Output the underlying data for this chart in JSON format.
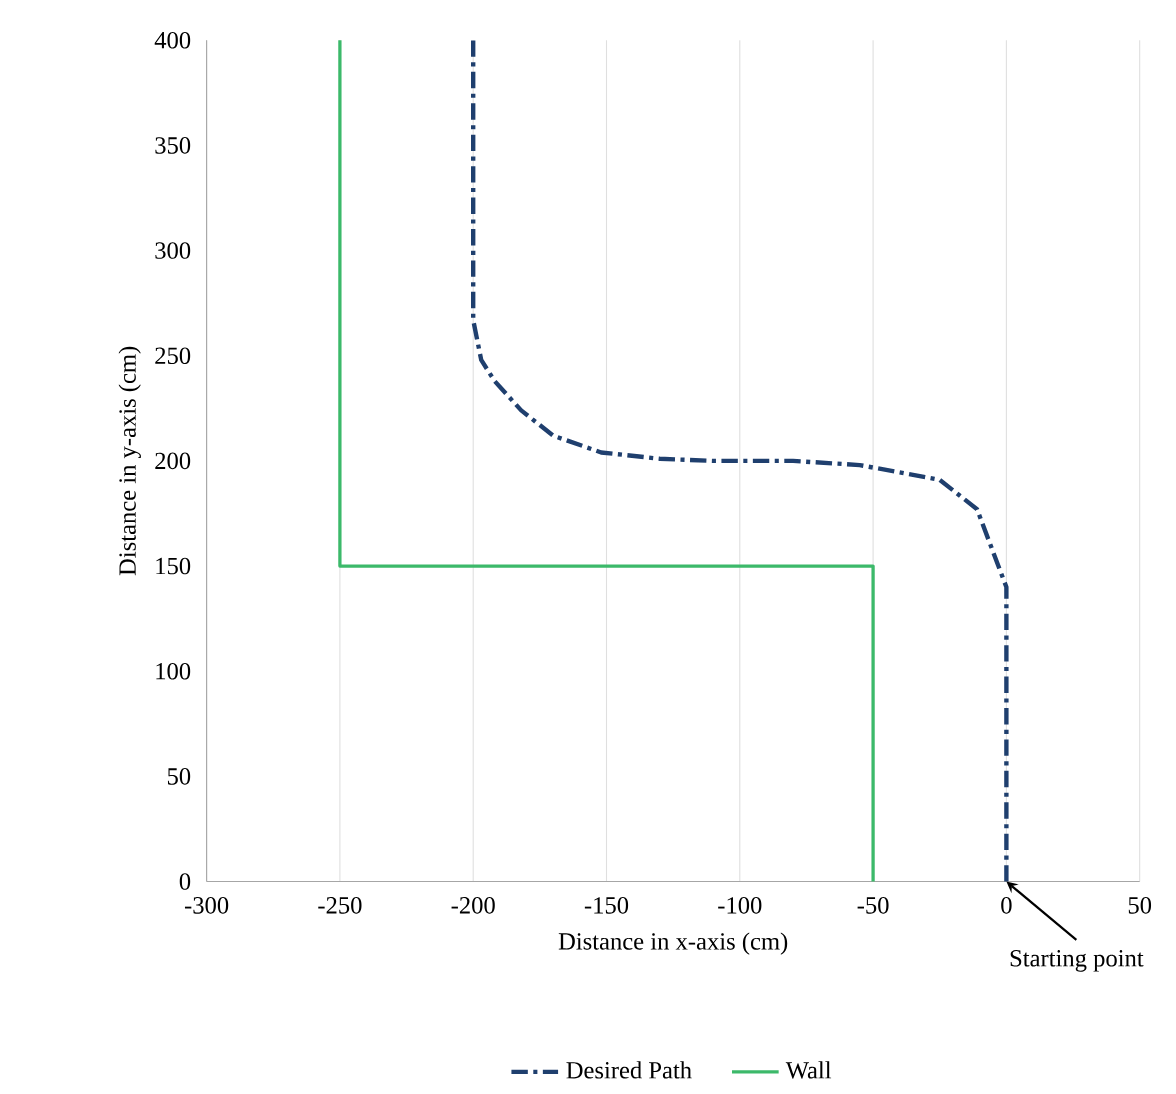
{
  "chart_data": {
    "type": "line",
    "xlabel": "Distance in x-axis (cm)",
    "ylabel": "Distance in y-axis (cm)",
    "xlim": [
      -300,
      50
    ],
    "xticks": [
      -300,
      -250,
      -200,
      -150,
      -100,
      -50,
      0,
      50
    ],
    "ylim": [
      0,
      400
    ],
    "yticks": [
      0,
      50,
      100,
      150,
      200,
      250,
      300,
      350,
      400
    ],
    "grid": "x",
    "legend": "bottom",
    "series": [
      {
        "name": "Desired Path",
        "color": "#1f3f6e",
        "line_style": "dashed",
        "x": [
          0,
          0,
          -3,
          -11,
          -25,
          -55,
          -80,
          -110,
          -130,
          -152,
          -170,
          -182,
          -192,
          -197,
          -200,
          -200
        ],
        "values": [
          0,
          140,
          150,
          177,
          191,
          198,
          200,
          200,
          201,
          204,
          212,
          224,
          238,
          248,
          267,
          400
        ]
      },
      {
        "name": "Wall",
        "color": "#3cb96a",
        "line_style": "solid",
        "x": [
          -50,
          -50,
          -250,
          -250
        ],
        "values": [
          0,
          150,
          150,
          400
        ]
      }
    ],
    "annotations": [
      {
        "text": "Starting point",
        "x": 0,
        "y": 0
      }
    ]
  }
}
